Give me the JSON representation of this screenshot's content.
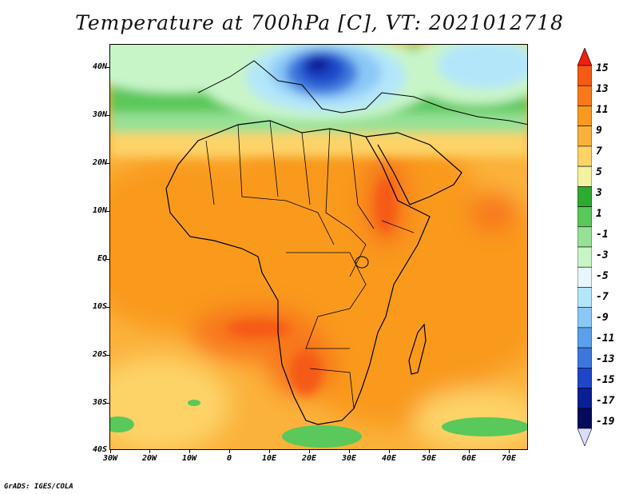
{
  "title": "Temperature at 700hPa [C], VT: 2021012718",
  "credit": "GrADS: IGES/COLA",
  "lat_axis": {
    "labels": [
      "40N",
      "30N",
      "20N",
      "10N",
      "EQ",
      "10S",
      "20S",
      "30S",
      "40S"
    ],
    "values": [
      40,
      30,
      20,
      10,
      0,
      -10,
      -20,
      -30,
      -40
    ],
    "range": [
      -40,
      45
    ]
  },
  "lon_axis": {
    "labels": [
      "30W",
      "20W",
      "10W",
      "0",
      "10E",
      "20E",
      "30E",
      "40E",
      "50E",
      "60E",
      "70E"
    ],
    "values": [
      -30,
      -20,
      -10,
      0,
      10,
      20,
      30,
      40,
      50,
      60,
      70
    ],
    "range": [
      -30,
      75
    ]
  },
  "colorbar": {
    "labels": [
      "15",
      "13",
      "11",
      "9",
      "7",
      "5",
      "3",
      "1",
      "-1",
      "-3",
      "-5",
      "-7",
      "-9",
      "-11",
      "-13",
      "-15",
      "-17",
      "-19"
    ],
    "colors": [
      "#f01e10",
      "#f55a14",
      "#f8781a",
      "#f99a1e",
      "#fbb23c",
      "#fdd368",
      "#f3f29e",
      "#2daa30",
      "#5ac85a",
      "#96e196",
      "#c8f5c8",
      "#e6f6fa",
      "#b4e6fa",
      "#8cc8f5",
      "#5aa0eb",
      "#3c78dc",
      "#1e46c8",
      "#0a1e96",
      "#050a5a",
      "#dcdcff"
    ]
  }
}
